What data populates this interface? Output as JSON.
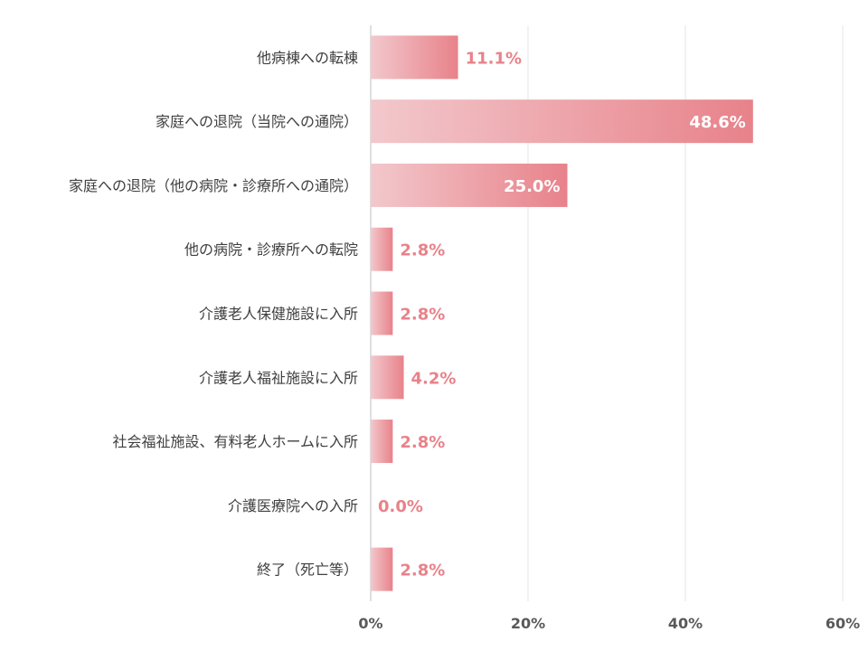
{
  "chart_data": {
    "type": "bar",
    "orientation": "horizontal",
    "categories": [
      "他病棟への転棟",
      "家庭への退院（当院への通院）",
      "家庭への退院（他の病院・診療所への通院）",
      "他の病院・診療所への転院",
      "介護老人保健施設に入所",
      "介護老人福祉施設に入所",
      "社会福祉施設、有料老人ホームに入所",
      "介護医療院への入所",
      "終了（死亡等）"
    ],
    "values": [
      11.1,
      48.6,
      25.0,
      2.8,
      2.8,
      4.2,
      2.8,
      0.0,
      2.8
    ],
    "value_labels": [
      "11.1%",
      "48.6%",
      "25.0%",
      "2.8%",
      "2.8%",
      "4.2%",
      "2.8%",
      "0.0%",
      "2.8%"
    ],
    "xlim": [
      0,
      60
    ],
    "xticks": [
      0,
      20,
      40,
      60
    ],
    "xtick_labels": [
      "0%",
      "20%",
      "40%",
      "60%"
    ],
    "title": "",
    "xlabel": "",
    "ylabel": "",
    "grid": "vertical",
    "legend": "none",
    "colors": {
      "bar_start": "#f2c8cc",
      "bar_end": "#e8828a",
      "label_outside": "#e8828a",
      "label_inside": "#ffffff"
    }
  }
}
